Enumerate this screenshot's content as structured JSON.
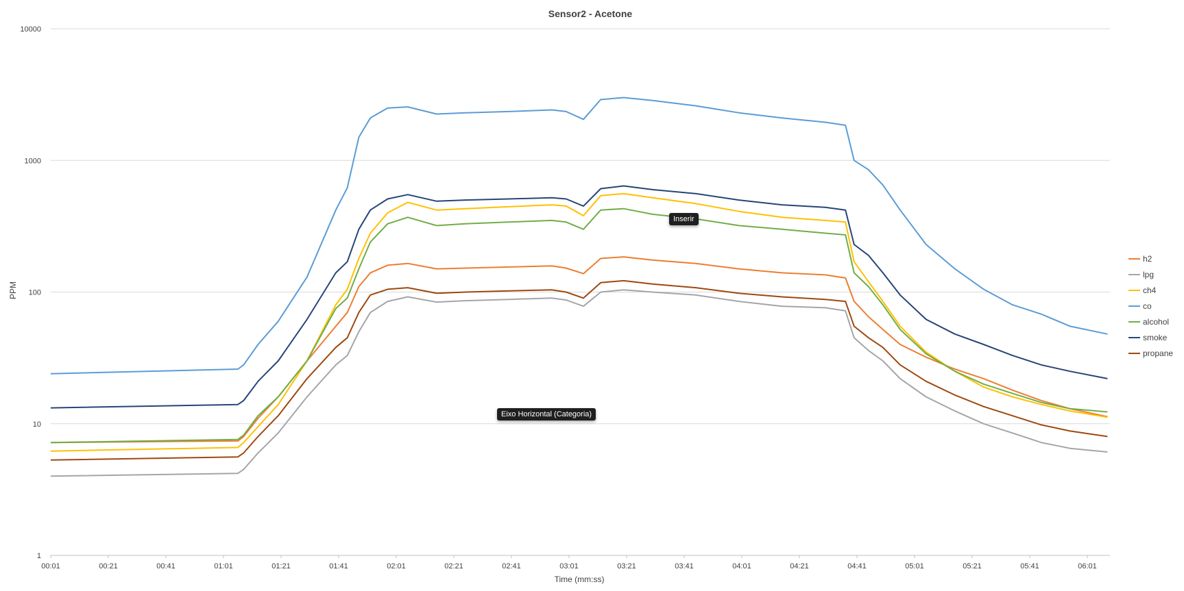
{
  "chart_data": {
    "type": "line",
    "title": "Sensor2 - Acetone",
    "xlabel": "Time (mm:ss)",
    "ylabel": "PPM",
    "yscale": "log",
    "ylim": [
      1,
      10000
    ],
    "y_ticks": [
      "1",
      "10",
      "100",
      "1000",
      "10000"
    ],
    "x_ticks": [
      "00:01",
      "00:21",
      "00:41",
      "01:01",
      "01:21",
      "01:41",
      "02:01",
      "02:21",
      "02:41",
      "03:01",
      "03:21",
      "03:41",
      "04:01",
      "04:21",
      "04:41",
      "05:01",
      "05:21",
      "05:41",
      "06:01"
    ],
    "x_range_seconds": [
      1,
      368
    ],
    "legend_position": "right",
    "grid": "horizontal",
    "series": [
      {
        "name": "h2",
        "color": "#ED7D31",
        "points": [
          [
            1,
            7.2
          ],
          [
            66,
            7.4
          ],
          [
            68,
            8
          ],
          [
            73,
            11
          ],
          [
            80,
            16
          ],
          [
            90,
            30
          ],
          [
            100,
            55
          ],
          [
            104,
            70
          ],
          [
            108,
            110
          ],
          [
            112,
            140
          ],
          [
            118,
            160
          ],
          [
            125,
            165
          ],
          [
            135,
            150
          ],
          [
            145,
            152
          ],
          [
            160,
            155
          ],
          [
            175,
            158
          ],
          [
            180,
            152
          ],
          [
            186,
            138
          ],
          [
            192,
            180
          ],
          [
            200,
            185
          ],
          [
            210,
            175
          ],
          [
            225,
            165
          ],
          [
            240,
            150
          ],
          [
            255,
            140
          ],
          [
            270,
            135
          ],
          [
            277,
            128
          ],
          [
            280,
            85
          ],
          [
            285,
            65
          ],
          [
            290,
            52
          ],
          [
            296,
            40
          ],
          [
            305,
            32
          ],
          [
            315,
            26
          ],
          [
            325,
            22
          ],
          [
            335,
            18
          ],
          [
            345,
            15
          ],
          [
            355,
            13
          ],
          [
            368,
            11.3
          ]
        ]
      },
      {
        "name": "lpg",
        "color": "#A5A5A5",
        "points": [
          [
            1,
            4.0
          ],
          [
            66,
            4.2
          ],
          [
            68,
            4.5
          ],
          [
            73,
            6
          ],
          [
            80,
            8.5
          ],
          [
            90,
            16
          ],
          [
            100,
            28
          ],
          [
            104,
            33
          ],
          [
            108,
            50
          ],
          [
            112,
            70
          ],
          [
            118,
            85
          ],
          [
            125,
            92
          ],
          [
            135,
            84
          ],
          [
            145,
            86
          ],
          [
            160,
            88
          ],
          [
            175,
            90
          ],
          [
            180,
            87
          ],
          [
            186,
            78
          ],
          [
            192,
            100
          ],
          [
            200,
            104
          ],
          [
            210,
            100
          ],
          [
            225,
            95
          ],
          [
            240,
            85
          ],
          [
            255,
            78
          ],
          [
            270,
            76
          ],
          [
            277,
            72
          ],
          [
            280,
            45
          ],
          [
            285,
            36
          ],
          [
            290,
            30
          ],
          [
            296,
            22
          ],
          [
            305,
            16
          ],
          [
            315,
            12.5
          ],
          [
            325,
            10
          ],
          [
            335,
            8.5
          ],
          [
            345,
            7.2
          ],
          [
            355,
            6.5
          ],
          [
            368,
            6.1
          ]
        ]
      },
      {
        "name": "ch4",
        "color": "#FFC000",
        "points": [
          [
            1,
            6.2
          ],
          [
            66,
            6.6
          ],
          [
            68,
            7.2
          ],
          [
            73,
            9.5
          ],
          [
            80,
            14
          ],
          [
            90,
            30
          ],
          [
            100,
            80
          ],
          [
            104,
            105
          ],
          [
            108,
            180
          ],
          [
            112,
            280
          ],
          [
            118,
            400
          ],
          [
            125,
            480
          ],
          [
            135,
            420
          ],
          [
            145,
            430
          ],
          [
            160,
            445
          ],
          [
            175,
            460
          ],
          [
            180,
            450
          ],
          [
            186,
            380
          ],
          [
            192,
            540
          ],
          [
            200,
            560
          ],
          [
            210,
            520
          ],
          [
            225,
            470
          ],
          [
            240,
            410
          ],
          [
            255,
            370
          ],
          [
            270,
            350
          ],
          [
            277,
            340
          ],
          [
            280,
            170
          ],
          [
            285,
            120
          ],
          [
            290,
            85
          ],
          [
            296,
            55
          ],
          [
            305,
            35
          ],
          [
            315,
            25
          ],
          [
            325,
            19
          ],
          [
            335,
            16
          ],
          [
            345,
            14
          ],
          [
            355,
            12.5
          ],
          [
            368,
            11.2
          ]
        ]
      },
      {
        "name": "co",
        "color": "#5B9BD5",
        "points": [
          [
            1,
            24
          ],
          [
            66,
            26
          ],
          [
            68,
            28
          ],
          [
            73,
            40
          ],
          [
            80,
            60
          ],
          [
            90,
            130
          ],
          [
            100,
            420
          ],
          [
            104,
            620
          ],
          [
            108,
            1500
          ],
          [
            112,
            2100
          ],
          [
            118,
            2500
          ],
          [
            125,
            2550
          ],
          [
            135,
            2250
          ],
          [
            145,
            2300
          ],
          [
            160,
            2350
          ],
          [
            175,
            2420
          ],
          [
            180,
            2350
          ],
          [
            186,
            2050
          ],
          [
            192,
            2900
          ],
          [
            200,
            3000
          ],
          [
            210,
            2850
          ],
          [
            225,
            2600
          ],
          [
            240,
            2300
          ],
          [
            255,
            2100
          ],
          [
            270,
            1950
          ],
          [
            277,
            1850
          ],
          [
            280,
            1000
          ],
          [
            285,
            850
          ],
          [
            290,
            650
          ],
          [
            296,
            420
          ],
          [
            305,
            230
          ],
          [
            315,
            150
          ],
          [
            325,
            105
          ],
          [
            335,
            80
          ],
          [
            345,
            68
          ],
          [
            355,
            55
          ],
          [
            368,
            48
          ]
        ]
      },
      {
        "name": "alcohol",
        "color": "#70AD47",
        "points": [
          [
            1,
            7.2
          ],
          [
            66,
            7.6
          ],
          [
            68,
            8.2
          ],
          [
            73,
            11.5
          ],
          [
            80,
            16
          ],
          [
            90,
            30
          ],
          [
            100,
            75
          ],
          [
            104,
            90
          ],
          [
            108,
            150
          ],
          [
            112,
            240
          ],
          [
            118,
            330
          ],
          [
            125,
            370
          ],
          [
            135,
            320
          ],
          [
            145,
            330
          ],
          [
            160,
            340
          ],
          [
            175,
            350
          ],
          [
            180,
            340
          ],
          [
            186,
            300
          ],
          [
            192,
            420
          ],
          [
            200,
            430
          ],
          [
            210,
            390
          ],
          [
            225,
            360
          ],
          [
            240,
            320
          ],
          [
            255,
            300
          ],
          [
            270,
            280
          ],
          [
            277,
            272
          ],
          [
            280,
            140
          ],
          [
            285,
            110
          ],
          [
            290,
            80
          ],
          [
            296,
            52
          ],
          [
            305,
            34
          ],
          [
            315,
            25
          ],
          [
            325,
            20
          ],
          [
            335,
            17
          ],
          [
            345,
            14.5
          ],
          [
            355,
            13
          ],
          [
            368,
            12.3
          ]
        ]
      },
      {
        "name": "smoke",
        "color": "#264478",
        "points": [
          [
            1,
            13.2
          ],
          [
            66,
            14
          ],
          [
            68,
            15
          ],
          [
            73,
            21
          ],
          [
            80,
            30
          ],
          [
            90,
            62
          ],
          [
            100,
            140
          ],
          [
            104,
            170
          ],
          [
            108,
            300
          ],
          [
            112,
            420
          ],
          [
            118,
            510
          ],
          [
            125,
            550
          ],
          [
            135,
            490
          ],
          [
            145,
            500
          ],
          [
            160,
            510
          ],
          [
            175,
            520
          ],
          [
            180,
            510
          ],
          [
            186,
            450
          ],
          [
            192,
            610
          ],
          [
            200,
            640
          ],
          [
            210,
            600
          ],
          [
            225,
            560
          ],
          [
            240,
            500
          ],
          [
            255,
            460
          ],
          [
            270,
            440
          ],
          [
            277,
            420
          ],
          [
            280,
            230
          ],
          [
            285,
            190
          ],
          [
            290,
            140
          ],
          [
            296,
            95
          ],
          [
            305,
            62
          ],
          [
            315,
            48
          ],
          [
            325,
            40
          ],
          [
            335,
            33
          ],
          [
            345,
            28
          ],
          [
            355,
            25
          ],
          [
            368,
            22
          ]
        ]
      },
      {
        "name": "propane",
        "color": "#9E480E",
        "points": [
          [
            1,
            5.3
          ],
          [
            66,
            5.6
          ],
          [
            68,
            6
          ],
          [
            73,
            8
          ],
          [
            80,
            11.5
          ],
          [
            90,
            22
          ],
          [
            100,
            38
          ],
          [
            104,
            45
          ],
          [
            108,
            70
          ],
          [
            112,
            95
          ],
          [
            118,
            105
          ],
          [
            125,
            108
          ],
          [
            135,
            98
          ],
          [
            145,
            100
          ],
          [
            160,
            102
          ],
          [
            175,
            104
          ],
          [
            180,
            100
          ],
          [
            186,
            90
          ],
          [
            192,
            118
          ],
          [
            200,
            122
          ],
          [
            210,
            115
          ],
          [
            225,
            108
          ],
          [
            240,
            98
          ],
          [
            255,
            92
          ],
          [
            270,
            88
          ],
          [
            277,
            85
          ],
          [
            280,
            55
          ],
          [
            285,
            45
          ],
          [
            290,
            38
          ],
          [
            296,
            28
          ],
          [
            305,
            21
          ],
          [
            315,
            16.5
          ],
          [
            325,
            13.5
          ],
          [
            335,
            11.5
          ],
          [
            345,
            9.8
          ],
          [
            355,
            8.8
          ],
          [
            368,
            8.0
          ]
        ]
      }
    ]
  },
  "tooltips": {
    "inserir": "Inserir",
    "axis": "Eixo Horizontal (Categoria)"
  }
}
